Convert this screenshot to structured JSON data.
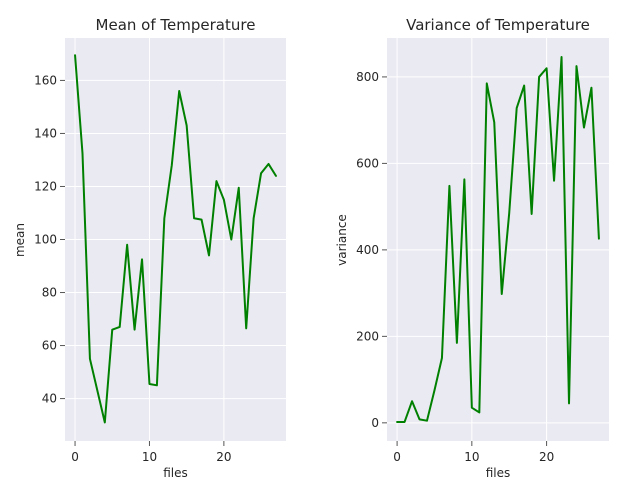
{
  "chart_data": [
    {
      "type": "line",
      "title": "Mean of Temperature",
      "xlabel": "files",
      "ylabel": "mean",
      "xlim": [
        -1.35,
        28.35
      ],
      "ylim": [
        24,
        176
      ],
      "xticks": [
        0,
        10,
        20
      ],
      "yticks": [
        40,
        60,
        80,
        100,
        120,
        140,
        160
      ],
      "grid": true,
      "color": "#008000",
      "x": [
        0,
        1,
        2,
        3,
        4,
        5,
        6,
        7,
        8,
        9,
        10,
        11,
        12,
        13,
        14,
        15,
        16,
        17,
        18,
        19,
        20,
        21,
        22,
        23,
        24,
        25,
        26,
        27
      ],
      "values": [
        169.5,
        132.5,
        55.0,
        43.0,
        31.0,
        66.0,
        67.0,
        98.0,
        66.0,
        92.5,
        45.5,
        45.0,
        108.0,
        128.0,
        156.0,
        143.0,
        108.0,
        107.5,
        94.0,
        122.0,
        115.0,
        100.0,
        119.5,
        66.5,
        108.0,
        125.0,
        128.5,
        124.0
      ]
    },
    {
      "type": "line",
      "title": "Variance of Temperature",
      "xlabel": "files",
      "ylabel": "variance",
      "xlim": [
        -1.35,
        28.35
      ],
      "ylim": [
        -42,
        890
      ],
      "xticks": [
        0,
        10,
        20
      ],
      "yticks": [
        0,
        200,
        400,
        600,
        800
      ],
      "grid": true,
      "color": "#008000",
      "x": [
        0,
        1,
        2,
        3,
        4,
        5,
        6,
        7,
        8,
        9,
        10,
        11,
        12,
        13,
        14,
        15,
        16,
        17,
        18,
        19,
        20,
        21,
        22,
        23,
        24,
        25,
        26,
        27
      ],
      "values": [
        2,
        2,
        50,
        8,
        5,
        75,
        150,
        548,
        185,
        563,
        35,
        24,
        785,
        695,
        298,
        485,
        728,
        780,
        483,
        800,
        820,
        560,
        846,
        45,
        825,
        683,
        775,
        426
      ]
    }
  ]
}
